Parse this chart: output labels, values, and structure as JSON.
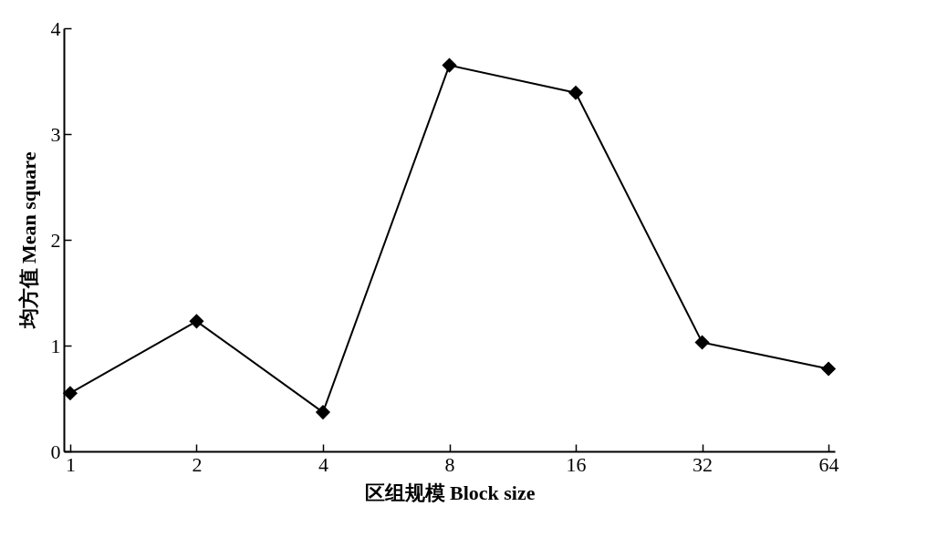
{
  "chart_data": {
    "type": "line",
    "xlabel": "区组规模 Block size",
    "ylabel": "均方值 Mean square",
    "categories": [
      "1",
      "2",
      "4",
      "8",
      "16",
      "32",
      "64"
    ],
    "series": [
      {
        "color": "#000000",
        "values": [
          0.55,
          1.23,
          0.37,
          3.65,
          3.39,
          1.03,
          0.78
        ]
      }
    ],
    "ylim": [
      0,
      4
    ],
    "yticks": [
      0,
      1,
      2,
      3,
      4
    ],
    "grid": false,
    "legend": false,
    "marker": "diamond",
    "line_style": "solid"
  }
}
